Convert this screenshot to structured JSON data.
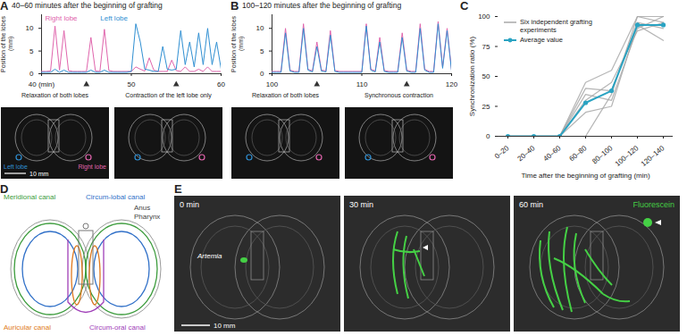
{
  "chart_data": [
    {
      "panel": "A",
      "type": "line",
      "title": "40–60 minutes after the beginning of grafting",
      "y_label": "Position of the lobes (mm)",
      "x": [
        40,
        40.5,
        41,
        41.5,
        42,
        42.5,
        43,
        43.5,
        44,
        44.5,
        45,
        45.5,
        46,
        46.5,
        47,
        47.5,
        48,
        48.5,
        49,
        49.5,
        50,
        50.5,
        51,
        51.5,
        52,
        52.5,
        53,
        53.5,
        54,
        54.5,
        55,
        55.5,
        56,
        56.5,
        57,
        57.5,
        58,
        58.5,
        59,
        59.5,
        60
      ],
      "series": [
        {
          "name": "Right lobe",
          "color": "#e064ac",
          "values": [
            0.5,
            0.5,
            0.6,
            10.5,
            0.8,
            9.5,
            0.7,
            0.5,
            0.5,
            0.5,
            0.5,
            8,
            0.6,
            0.5,
            9.8,
            0.7,
            0.5,
            0.5,
            0.5,
            0.5,
            0.5,
            1.5,
            1,
            0.6,
            3.5,
            0.8,
            0.5,
            0.5,
            0.5,
            3,
            0.7,
            0.5,
            1.5,
            0.5,
            0.5,
            1,
            0.5,
            1.5,
            0.5,
            0.5,
            0.5
          ]
        },
        {
          "name": "Left lobe",
          "color": "#2f8fd2",
          "values": [
            0.3,
            0.3,
            0.3,
            1,
            0.3,
            0.8,
            0.3,
            0.3,
            0.3,
            0.3,
            0.3,
            0.8,
            0.3,
            0.3,
            0.8,
            0.3,
            0.3,
            0.3,
            0.3,
            0.3,
            0.5,
            11,
            7,
            1,
            0.8,
            0.5,
            0.5,
            6,
            1,
            0.8,
            1,
            9.5,
            2,
            7,
            1.5,
            9,
            2,
            10,
            2,
            7,
            1
          ]
        }
      ],
      "xlim": [
        40,
        60
      ],
      "xticks": [
        {
          "value": 40,
          "label": "40 (min)"
        },
        50,
        60
      ],
      "ylim": [
        0,
        13
      ],
      "yticks": [
        0,
        5,
        10
      ],
      "annotations": [
        {
          "x": 45,
          "text": "Relaxation of both lobes"
        },
        {
          "x": 55,
          "text": "Contraction of the left lobe only"
        }
      ],
      "image_labels": {
        "left": "Left lobe",
        "right": "Right lobe",
        "scale_bar": "10 mm"
      }
    },
    {
      "panel": "B",
      "type": "line",
      "title": "100–120 minutes after the beginning of grafting",
      "y_label": "Position of the lobes (mm)",
      "x": [
        100,
        100.5,
        101,
        101.5,
        102,
        102.5,
        103,
        103.5,
        104,
        104.5,
        105,
        105.5,
        106,
        106.5,
        107,
        107.5,
        108,
        108.5,
        109,
        109.5,
        110,
        110.5,
        111,
        111.5,
        112,
        112.5,
        113,
        113.5,
        114,
        114.5,
        115,
        115.5,
        116,
        116.5,
        117,
        117.5,
        118,
        118.5,
        119,
        119.5,
        120
      ],
      "series": [
        {
          "color": "#e064ac",
          "values": [
            0.5,
            0.5,
            0.5,
            10,
            0.8,
            0.5,
            0.5,
            11,
            1,
            0.6,
            7,
            0.8,
            0.6,
            9.5,
            0.7,
            0.5,
            0.5,
            0.5,
            0.5,
            0.5,
            0.5,
            11,
            1,
            0.6,
            8,
            0.7,
            0.5,
            0.5,
            0.5,
            9,
            0.8,
            0.5,
            0.5,
            11,
            1,
            0.5,
            0.5,
            11.5,
            1.5,
            10,
            0.8
          ]
        },
        {
          "color": "#2f8fd2",
          "values": [
            0.3,
            0.3,
            0.3,
            9,
            0.6,
            0.3,
            0.3,
            10,
            0.8,
            0.4,
            6,
            0.6,
            0.4,
            8.5,
            0.5,
            0.3,
            0.3,
            0.3,
            0.3,
            0.3,
            0.3,
            10.5,
            0.8,
            0.4,
            7,
            0.5,
            0.3,
            0.3,
            0.3,
            8,
            0.6,
            0.3,
            0.3,
            10,
            0.8,
            0.3,
            0.3,
            11,
            1.2,
            9.5,
            0.6
          ]
        }
      ],
      "xlim": [
        100,
        120
      ],
      "xticks": [
        100,
        110,
        120
      ],
      "ylim": [
        0,
        13
      ],
      "yticks": [
        0,
        5,
        10
      ],
      "annotations": [
        {
          "x": 105,
          "text": "Relaxation of both lobes"
        },
        {
          "x": 115,
          "text": "Synchronous contraction"
        }
      ]
    },
    {
      "panel": "C",
      "type": "line",
      "xlabel": "Time after the beginning of grafting (min)",
      "ylabel": "Synchronization ratio (%)",
      "categories": [
        "0–20",
        "20–40",
        "40–60",
        "60–80",
        "80–100",
        "100–120",
        "120–140"
      ],
      "series": [
        {
          "name": "Six independent grafting experiments",
          "color": "#a8a8a8",
          "runs": [
            [
              0,
              0,
              0,
              45,
              55,
              100,
              100
            ],
            [
              0,
              0,
              0,
              20,
              25,
              93,
              80
            ],
            [
              0,
              0,
              0,
              0,
              35,
              100,
              95
            ],
            [
              0,
              0,
              0,
              35,
              30,
              90,
              100
            ],
            [
              0,
              0,
              0,
              40,
              38,
              95,
              90
            ],
            [
              0,
              0,
              0,
              30,
              45,
              88,
              95
            ]
          ]
        },
        {
          "name": "Average value",
          "color": "#2aa3c2",
          "marker": "circle",
          "values": [
            0,
            0,
            0,
            28,
            38,
            93,
            93
          ]
        }
      ],
      "ylim": [
        0,
        100
      ],
      "yticks": [
        0,
        25,
        50,
        75,
        100
      ],
      "legend": "top-left"
    }
  ],
  "diagram": {
    "panel": "D",
    "labels": [
      {
        "text": "Meridional canal",
        "color": "#3c9c3c"
      },
      {
        "text": "Circum-lobal canal",
        "color": "#3070c8"
      },
      {
        "text": "Anus",
        "color": "#444444"
      },
      {
        "text": "Pharynx",
        "color": "#444444"
      },
      {
        "text": "Auricular canal",
        "color": "#e07a20"
      },
      {
        "text": "Circum-oral canal",
        "color": "#a040b8"
      }
    ]
  },
  "image_panel": {
    "panel": "E",
    "channel": "Fluorescein",
    "channel_color": "#45d045",
    "frames": [
      "0 min",
      "30 min",
      "60 min"
    ],
    "specimen_label": "Artemia",
    "scale_bar": "10 mm"
  }
}
